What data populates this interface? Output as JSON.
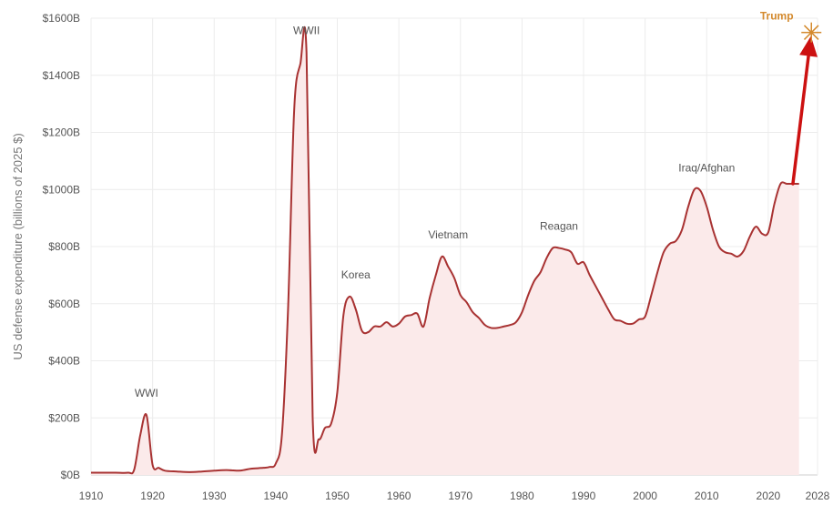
{
  "chart_data": {
    "type": "area",
    "title": "",
    "xlabel": "",
    "ylabel": "US defense expenditure (billions of 2025 $)",
    "xlim": [
      1910,
      2028
    ],
    "ylim": [
      0,
      1600
    ],
    "x_ticks": [
      1910,
      1920,
      1930,
      1940,
      1950,
      1960,
      1970,
      1980,
      1990,
      2000,
      2010,
      2020,
      2028
    ],
    "x_tick_labels": [
      "1910",
      "1920",
      "1930",
      "1940",
      "1950",
      "1960",
      "1970",
      "1980",
      "1990",
      "2000",
      "2010",
      "2020",
      "2028"
    ],
    "y_ticks": [
      0,
      200,
      400,
      600,
      800,
      1000,
      1200,
      1400,
      1600
    ],
    "y_tick_labels": [
      "$0B",
      "$200B",
      "$400B",
      "$600B",
      "$800B",
      "$1000B",
      "$1200B",
      "$1400B",
      "$1600B"
    ],
    "grid": true,
    "line_color": "#a83232",
    "fill_color": "#fbeaea",
    "series": [
      {
        "x": [
          1910,
          1912,
          1914,
          1916,
          1917,
          1918,
          1919,
          1920,
          1921,
          1922,
          1924,
          1926,
          1928,
          1930,
          1932,
          1934,
          1935,
          1936,
          1938,
          1939,
          1940,
          1941,
          1942,
          1943,
          1944,
          1945,
          1946,
          1947,
          1948,
          1949,
          1950,
          1951,
          1952,
          1953,
          1954,
          1955,
          1956,
          1957,
          1958,
          1959,
          1960,
          1961,
          1962,
          1963,
          1964,
          1965,
          1966,
          1967,
          1968,
          1969,
          1970,
          1971,
          1972,
          1973,
          1974,
          1975,
          1976,
          1977,
          1978,
          1979,
          1980,
          1981,
          1982,
          1983,
          1984,
          1985,
          1986,
          1987,
          1988,
          1989,
          1990,
          1991,
          1992,
          1993,
          1994,
          1995,
          1996,
          1997,
          1998,
          1999,
          2000,
          2001,
          2002,
          2003,
          2004,
          2005,
          2006,
          2007,
          2008,
          2009,
          2010,
          2011,
          2012,
          2013,
          2014,
          2015,
          2016,
          2017,
          2018,
          2019,
          2020,
          2021,
          2022,
          2023,
          2024,
          2025
        ],
        "values": [
          8,
          8,
          8,
          8,
          18,
          140,
          210,
          35,
          25,
          15,
          12,
          10,
          12,
          15,
          17,
          15,
          18,
          22,
          25,
          28,
          40,
          140,
          580,
          1280,
          1440,
          1480,
          200,
          125,
          165,
          180,
          290,
          560,
          625,
          580,
          505,
          500,
          520,
          520,
          535,
          520,
          530,
          555,
          560,
          565,
          520,
          620,
          700,
          765,
          730,
          690,
          630,
          605,
          570,
          550,
          525,
          515,
          515,
          520,
          525,
          535,
          570,
          630,
          680,
          710,
          760,
          795,
          795,
          790,
          780,
          740,
          745,
          700,
          660,
          620,
          580,
          545,
          540,
          530,
          530,
          545,
          555,
          630,
          710,
          780,
          810,
          820,
          860,
          940,
          1000,
          995,
          940,
          860,
          800,
          780,
          775,
          765,
          785,
          835,
          870,
          845,
          850,
          950,
          1020,
          1020,
          1020,
          1020
        ]
      }
    ],
    "projection": {
      "from": [
        2024,
        1020
      ],
      "to": [
        2027,
        1550
      ],
      "color": "#cc1111"
    },
    "annotations": [
      {
        "text": "WWI",
        "x": 1919,
        "y": 210
      },
      {
        "text": "WWII",
        "x": 1945,
        "y": 1480
      },
      {
        "text": "Korea",
        "x": 1953,
        "y": 625
      },
      {
        "text": "Vietnam",
        "x": 1968,
        "y": 765
      },
      {
        "text": "Reagan",
        "x": 1986,
        "y": 795
      },
      {
        "text": "Iraq/Afghan",
        "x": 2010,
        "y": 1000
      },
      {
        "text": "Trump",
        "x": 2027,
        "y": 1550,
        "color": "#d48a2e"
      }
    ]
  }
}
